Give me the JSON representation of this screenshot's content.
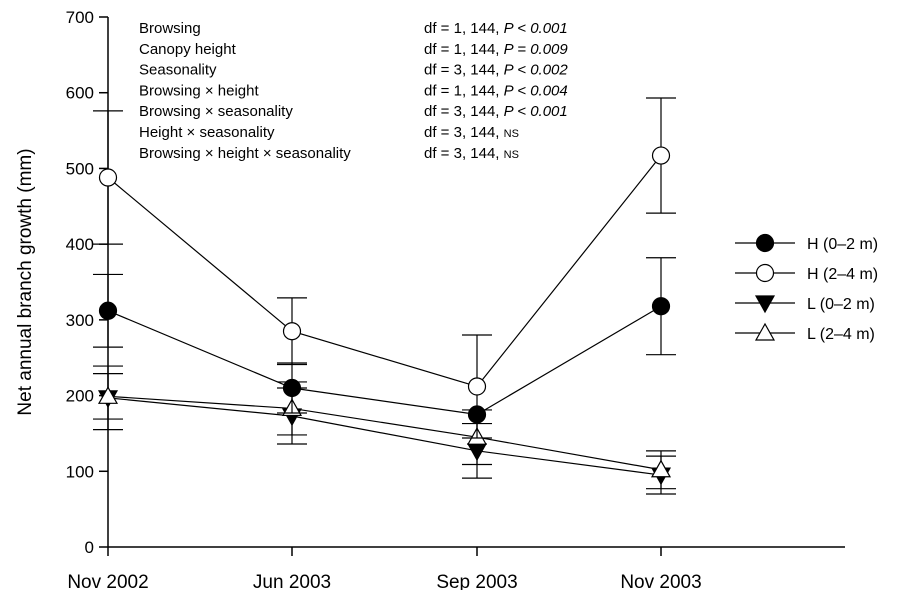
{
  "chart_data": {
    "type": "line",
    "xlabel": "",
    "ylabel": "Net annual branch growth (mm)",
    "ylim": [
      0,
      700
    ],
    "yticks": [
      0,
      100,
      200,
      300,
      400,
      500,
      600,
      700
    ],
    "categories": [
      "Nov 2002",
      "Jun 2003",
      "Sep 2003",
      "Nov 2003"
    ],
    "grid": false,
    "legend_position": "right",
    "series": [
      {
        "name": "H (0–2 m)",
        "marker": "circle-filled",
        "values": [
          312,
          210,
          175,
          318
        ],
        "err": [
          48,
          33,
          0,
          64
        ]
      },
      {
        "name": "H (2–4 m)",
        "marker": "circle-open",
        "values": [
          488,
          285,
          212,
          517
        ],
        "err": [
          88,
          44,
          68,
          76
        ]
      },
      {
        "name": "L (0–2 m)",
        "marker": "triangle-down-filled",
        "values": [
          197,
          173,
          127,
          95
        ],
        "err": [
          42,
          37,
          36,
          25
        ]
      },
      {
        "name": "L (2–4 m)",
        "marker": "triangle-up-open",
        "values": [
          199,
          183,
          145,
          102
        ],
        "err": [
          30,
          35,
          36,
          25
        ]
      }
    ],
    "annotations": [
      {
        "label": "Browsing",
        "stat": "df = 1, 144, ",
        "p": "P < 0.001"
      },
      {
        "label": "Canopy height",
        "stat": "df = 1, 144, ",
        "p": "P = 0.009"
      },
      {
        "label": "Seasonality",
        "stat": "df = 3, 144, ",
        "p": "P < 0.002"
      },
      {
        "label": "Browsing × height",
        "stat": "df = 1, 144, ",
        "p": "P < 0.004"
      },
      {
        "label": "Browsing × seasonality",
        "stat": "df = 3, 144, ",
        "p": "P < 0.001"
      },
      {
        "label": "Height × seasonality",
        "stat": "df = 3, 144, ",
        "p": "NS"
      },
      {
        "label": "Browsing × height × seasonality",
        "stat": "df = 3, 144, ",
        "p": "NS"
      }
    ]
  }
}
